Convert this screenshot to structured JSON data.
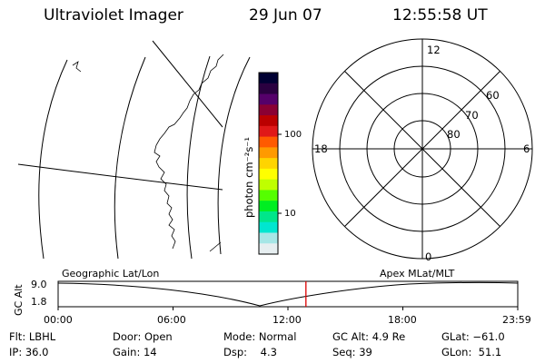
{
  "header": {
    "title": "Ultraviolet Imager",
    "date": "29 Jun 07",
    "time": "12:55:58 UT"
  },
  "colorbar": {
    "unit": "photon cm⁻²s⁻¹",
    "tick_labels": [
      "100",
      "10"
    ],
    "scale": "log",
    "colors": [
      "#000033",
      "#2a0040",
      "#55006a",
      "#8a0033",
      "#bb0000",
      "#e01818",
      "#ff5a00",
      "#ff9a00",
      "#ffd400",
      "#ffff00",
      "#bfff00",
      "#55ff00",
      "#00ee22",
      "#00e68a",
      "#00e6d0",
      "#a6e6e6",
      "#e6eef0"
    ]
  },
  "polar_plot": {
    "mlt_labels": {
      "top": "12",
      "left": "18",
      "right": "6",
      "bottom": "0"
    },
    "mlat_labels": [
      "60",
      "70",
      "80"
    ]
  },
  "timeline": {
    "y_axis_label": "GC Alt",
    "y_ticks": [
      "9.0",
      "1.8"
    ],
    "left_caption": "Geographic Lat/Lon",
    "right_caption": "Apex MLat/MLT",
    "x_ticks": [
      "00:00",
      "06:00",
      "12:00",
      "18:00",
      "23:59"
    ],
    "current_time_hours": 12.93,
    "marker_color": "#dd0000"
  },
  "footer": {
    "row1": [
      "Flt: LBHL",
      "Door: Open",
      "Mode: Normal",
      "GC Alt: 4.9 Re",
      "GLat: −61.0"
    ],
    "row2": [
      "IP: 36.0",
      "Gain: 14",
      "Dsp:    4.3",
      "Seq: 39",
      "GLon:  51.1"
    ]
  }
}
